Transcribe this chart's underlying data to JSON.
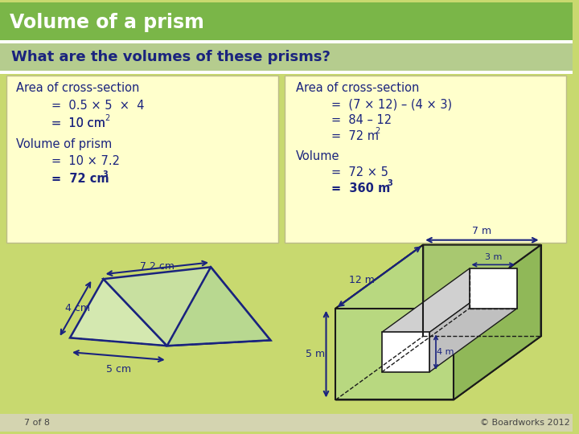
{
  "title": "Volume of a prism",
  "title_bg": "#7ab648",
  "title_color": "#ffffff",
  "question": "What are the volumes of these prisms?",
  "question_bg": "#b5cc8e",
  "main_bg": "#c8d96f",
  "box_bg": "#ffffcc",
  "text_color": "#1a237e",
  "left_box": {
    "line1": "Area of cross-section",
    "line2": "=  0.5 × 5  ×  4",
    "line3_a": "=  10 cm",
    "line3_sup": "2",
    "line4": "Volume of prism",
    "line5": "=  10 × 7.2",
    "line6_a": "=  72 cm",
    "line6_sup": "3"
  },
  "right_box": {
    "line1": "Area of cross-section",
    "line2": "=  (7 × 12) – (4 × 3)",
    "line3": "=  84 – 12",
    "line4_a": "=  72 m",
    "line4_sup": "2",
    "line5": "Volume",
    "line6": "=  72 × 5",
    "line7_a": "=  360 m",
    "line7_sup": "3"
  },
  "footer_text": "7 of 8",
  "copyright": "© Boardworks 2012",
  "footer_bg": "#d4d4b0"
}
